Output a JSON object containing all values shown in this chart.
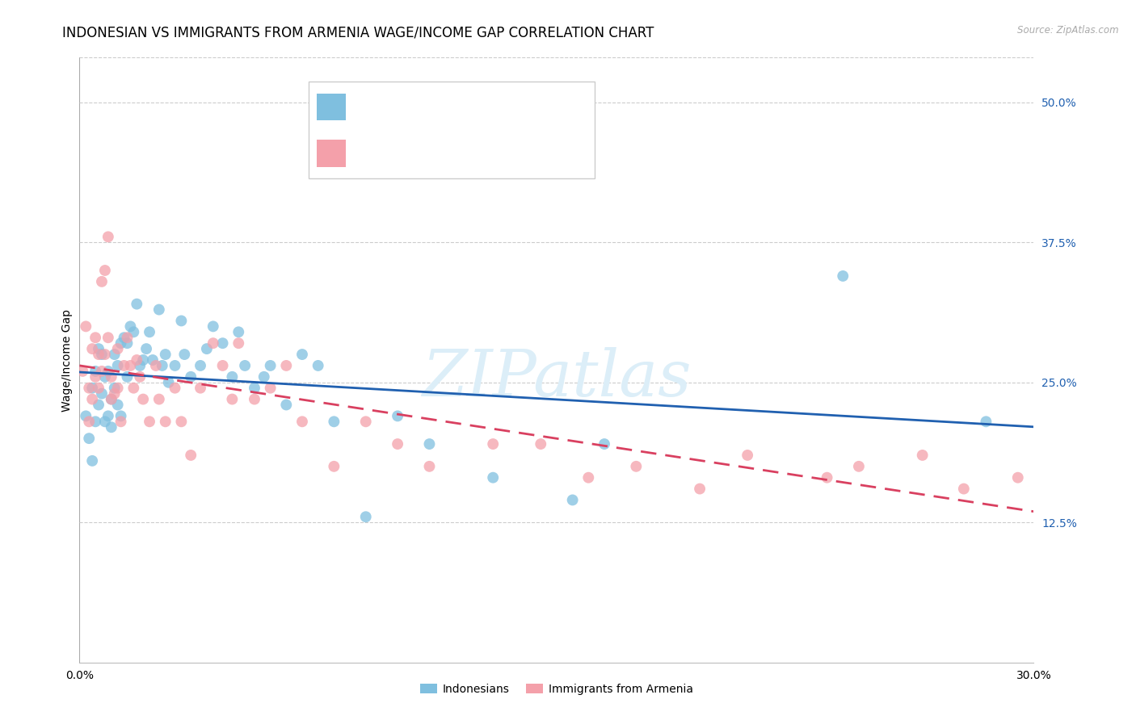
{
  "title": "INDONESIAN VS IMMIGRANTS FROM ARMENIA WAGE/INCOME GAP CORRELATION CHART",
  "source": "Source: ZipAtlas.com",
  "ylabel": "Wage/Income Gap",
  "xlim": [
    0.0,
    0.3
  ],
  "ylim": [
    0.0,
    0.54
  ],
  "yticks": [
    0.125,
    0.25,
    0.375,
    0.5
  ],
  "ytick_labels": [
    "12.5%",
    "25.0%",
    "37.5%",
    "50.0%"
  ],
  "legend_label1": "Indonesians",
  "legend_label2": "Immigrants from Armenia",
  "blue_color": "#7fbfdf",
  "pink_color": "#f4a0aa",
  "blue_line_color": "#2060b0",
  "pink_line_color": "#d94060",
  "watermark": "ZIPatlas",
  "watermark_color": "#dceef8",
  "title_fontsize": 12,
  "axis_label_fontsize": 10,
  "tick_fontsize": 10,
  "indonesian_x": [
    0.002,
    0.003,
    0.004,
    0.004,
    0.005,
    0.005,
    0.006,
    0.006,
    0.007,
    0.007,
    0.008,
    0.008,
    0.009,
    0.009,
    0.01,
    0.01,
    0.011,
    0.011,
    0.012,
    0.012,
    0.013,
    0.013,
    0.014,
    0.015,
    0.015,
    0.016,
    0.017,
    0.018,
    0.019,
    0.02,
    0.021,
    0.022,
    0.023,
    0.025,
    0.026,
    0.027,
    0.028,
    0.03,
    0.032,
    0.033,
    0.035,
    0.038,
    0.04,
    0.042,
    0.045,
    0.048,
    0.05,
    0.052,
    0.055,
    0.058,
    0.06,
    0.065,
    0.07,
    0.075,
    0.08,
    0.09,
    0.1,
    0.11,
    0.13,
    0.155,
    0.165,
    0.24,
    0.285
  ],
  "indonesian_y": [
    0.22,
    0.2,
    0.245,
    0.18,
    0.26,
    0.215,
    0.28,
    0.23,
    0.275,
    0.24,
    0.255,
    0.215,
    0.26,
    0.22,
    0.235,
    0.21,
    0.275,
    0.245,
    0.265,
    0.23,
    0.285,
    0.22,
    0.29,
    0.285,
    0.255,
    0.3,
    0.295,
    0.32,
    0.265,
    0.27,
    0.28,
    0.295,
    0.27,
    0.315,
    0.265,
    0.275,
    0.25,
    0.265,
    0.305,
    0.275,
    0.255,
    0.265,
    0.28,
    0.3,
    0.285,
    0.255,
    0.295,
    0.265,
    0.245,
    0.255,
    0.265,
    0.23,
    0.275,
    0.265,
    0.215,
    0.13,
    0.22,
    0.195,
    0.165,
    0.145,
    0.195,
    0.345,
    0.215
  ],
  "armenia_x": [
    0.001,
    0.002,
    0.003,
    0.003,
    0.004,
    0.004,
    0.005,
    0.005,
    0.006,
    0.006,
    0.007,
    0.007,
    0.008,
    0.008,
    0.009,
    0.009,
    0.01,
    0.01,
    0.011,
    0.012,
    0.012,
    0.013,
    0.014,
    0.015,
    0.016,
    0.017,
    0.018,
    0.019,
    0.02,
    0.022,
    0.024,
    0.025,
    0.027,
    0.03,
    0.032,
    0.035,
    0.038,
    0.042,
    0.045,
    0.048,
    0.05,
    0.055,
    0.06,
    0.065,
    0.07,
    0.08,
    0.09,
    0.1,
    0.11,
    0.13,
    0.145,
    0.16,
    0.175,
    0.195,
    0.21,
    0.235,
    0.245,
    0.265,
    0.278,
    0.295
  ],
  "armenia_y": [
    0.26,
    0.3,
    0.245,
    0.215,
    0.28,
    0.235,
    0.29,
    0.255,
    0.275,
    0.245,
    0.34,
    0.26,
    0.35,
    0.275,
    0.38,
    0.29,
    0.255,
    0.235,
    0.24,
    0.28,
    0.245,
    0.215,
    0.265,
    0.29,
    0.265,
    0.245,
    0.27,
    0.255,
    0.235,
    0.215,
    0.265,
    0.235,
    0.215,
    0.245,
    0.215,
    0.185,
    0.245,
    0.285,
    0.265,
    0.235,
    0.285,
    0.235,
    0.245,
    0.265,
    0.215,
    0.175,
    0.215,
    0.195,
    0.175,
    0.195,
    0.195,
    0.165,
    0.175,
    0.155,
    0.185,
    0.165,
    0.175,
    0.185,
    0.155,
    0.165
  ]
}
